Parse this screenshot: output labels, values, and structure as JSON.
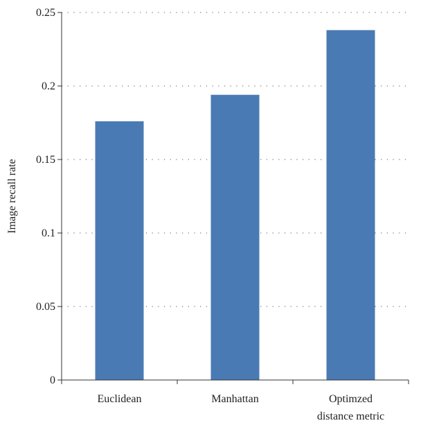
{
  "chart_data": {
    "type": "bar",
    "categories": [
      "Euclidean",
      "Manhattan",
      "Optimzed distance metric"
    ],
    "category_label_lines": [
      [
        "Euclidean"
      ],
      [
        "Manhattan"
      ],
      [
        "Optimzed",
        "distance metric"
      ]
    ],
    "values": [
      0.176,
      0.194,
      0.238
    ],
    "title": "",
    "xlabel": "",
    "ylabel": "Image recall rate",
    "ylim": [
      0,
      0.25
    ],
    "yticks": [
      0,
      0.05,
      0.1,
      0.15,
      0.2,
      0.25
    ],
    "ytick_labels": [
      "0",
      "0.05",
      "0.1",
      "0.15",
      "0.2",
      "0.25"
    ],
    "grid": "horizontal dotted",
    "bar_color": "#4a7ab4"
  }
}
